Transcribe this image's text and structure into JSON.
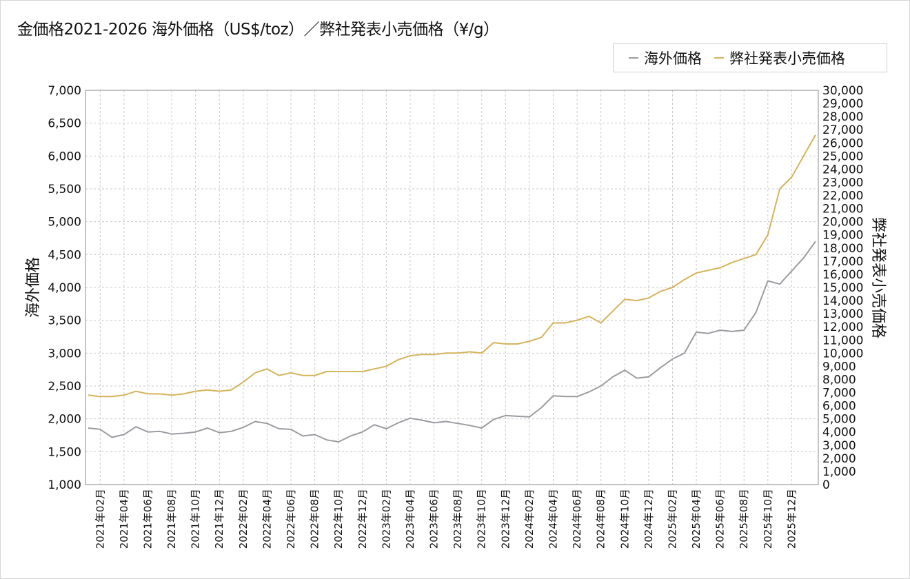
{
  "title": "金価格2021-2026 海外価格（US$/toz）／弊社発表小売価格（¥/g）",
  "legend": {
    "overseas_label": "海外価格",
    "retail_label": "弊社発表小売価格"
  },
  "colors": {
    "overseas": "#9b9ba1",
    "retail": "#d4b35a",
    "grid": "#c8c8c8",
    "axis": "#8a8a8a"
  },
  "chart_data": {
    "type": "line",
    "x_axis": {
      "ticks": [
        "2021年02月",
        "2021年04月",
        "2021年06月",
        "2021年08月",
        "2021年10月",
        "2021年12月",
        "2022年02月",
        "2022年04月",
        "2022年06月",
        "2022年08月",
        "2022年10月",
        "2022年12月",
        "2023年02月",
        "2023年04月",
        "2023年06月",
        "2023年08月",
        "2023年10月",
        "2023年12月",
        "2024年02月",
        "2024年04月",
        "2024年06月",
        "2024年08月",
        "2024年10月",
        "2024年12月",
        "2025年02月",
        "2025年04月",
        "2025年06月",
        "2025年08月",
        "2025年10月",
        "2025年12月"
      ]
    },
    "y_left": {
      "label": "海外価格",
      "min": 1000,
      "max": 7000,
      "ticks": [
        "1,000",
        "1,500",
        "2,000",
        "2,500",
        "3,000",
        "3,500",
        "4,000",
        "4,500",
        "5,000",
        "5,500",
        "6,000",
        "6,500",
        "7,000"
      ]
    },
    "y_right": {
      "label": "弊社発表小売価格",
      "min": 0,
      "max": 30000,
      "ticks": [
        "0",
        "1,000",
        "2,000",
        "3,000",
        "4,000",
        "5,000",
        "6,000",
        "7,000",
        "8,000",
        "9,000",
        "10,000",
        "11,000",
        "12,000",
        "13,000",
        "14,000",
        "15,000",
        "16,000",
        "17,000",
        "18,000",
        "19,000",
        "20,000",
        "21,000",
        "22,000",
        "23,000",
        "24,000",
        "25,000",
        "26,000",
        "27,000",
        "28,000",
        "29,000",
        "30,000"
      ]
    },
    "grid": true,
    "legend_position": "top-right",
    "x": [
      "2021-01",
      "2021-02",
      "2021-03",
      "2021-04",
      "2021-05",
      "2021-06",
      "2021-07",
      "2021-08",
      "2021-09",
      "2021-10",
      "2021-11",
      "2021-12",
      "2022-01",
      "2022-02",
      "2022-03",
      "2022-04",
      "2022-05",
      "2022-06",
      "2022-07",
      "2022-08",
      "2022-09",
      "2022-10",
      "2022-11",
      "2022-12",
      "2023-01",
      "2023-02",
      "2023-03",
      "2023-04",
      "2023-05",
      "2023-06",
      "2023-07",
      "2023-08",
      "2023-09",
      "2023-10",
      "2023-11",
      "2023-12",
      "2024-01",
      "2024-02",
      "2024-03",
      "2024-04",
      "2024-05",
      "2024-06",
      "2024-07",
      "2024-08",
      "2024-09",
      "2024-10",
      "2024-11",
      "2024-12",
      "2025-01",
      "2025-02",
      "2025-03",
      "2025-04",
      "2025-05",
      "2025-06",
      "2025-07",
      "2025-08",
      "2025-09",
      "2025-10",
      "2025-11",
      "2025-12",
      "2026-01",
      "2026-02"
    ],
    "series": [
      {
        "name": "海外価格",
        "axis": "left",
        "values": [
          1860,
          1840,
          1720,
          1760,
          1880,
          1800,
          1810,
          1770,
          1780,
          1800,
          1860,
          1790,
          1810,
          1870,
          1960,
          1930,
          1850,
          1840,
          1740,
          1760,
          1680,
          1650,
          1740,
          1800,
          1910,
          1850,
          1940,
          2010,
          1980,
          1940,
          1960,
          1930,
          1900,
          1860,
          1990,
          2050,
          2040,
          2030,
          2170,
          2350,
          2340,
          2340,
          2410,
          2500,
          2640,
          2740,
          2620,
          2640,
          2780,
          2910,
          3000,
          3320,
          3300,
          3350,
          3330,
          3350,
          3620,
          4100,
          4050,
          4250,
          4450,
          4700
        ]
      },
      {
        "name": "弊社発表小売価格",
        "axis": "right",
        "values": [
          6800,
          6700,
          6700,
          6800,
          7100,
          6900,
          6900,
          6800,
          6900,
          7100,
          7200,
          7100,
          7200,
          7800,
          8500,
          8800,
          8300,
          8500,
          8300,
          8300,
          8600,
          8600,
          8600,
          8600,
          8800,
          9000,
          9500,
          9800,
          9900,
          9900,
          10000,
          10000,
          10100,
          10000,
          10800,
          10700,
          10700,
          10900,
          11200,
          12300,
          12300,
          12500,
          12800,
          12300,
          13200,
          14100,
          14000,
          14200,
          14700,
          15000,
          15600,
          16100,
          16300,
          16500,
          16900,
          17200,
          17500,
          19000,
          22500,
          23400,
          25000,
          26600
        ]
      }
    ]
  }
}
